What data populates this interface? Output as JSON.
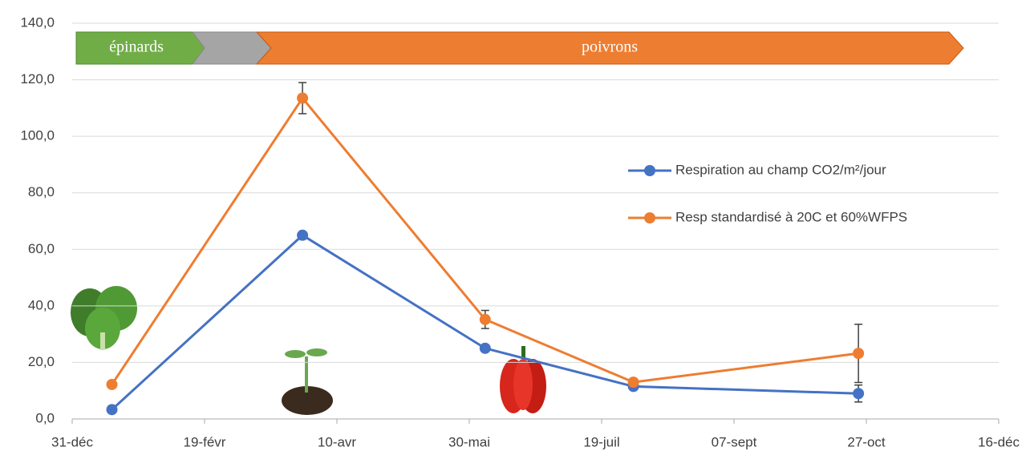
{
  "chart_data": {
    "type": "line",
    "phases": [
      "épinards",
      "poivrons"
    ],
    "x": [
      15,
      87,
      156,
      212,
      297
    ],
    "xlim": [
      0,
      350
    ],
    "xticks": [
      {
        "value": 0,
        "label": "31-déc"
      },
      {
        "value": 50,
        "label": "19-févr"
      },
      {
        "value": 100,
        "label": "10-avr"
      },
      {
        "value": 150,
        "label": "30-mai"
      },
      {
        "value": 200,
        "label": "19-juil"
      },
      {
        "value": 250,
        "label": "07-sept"
      },
      {
        "value": 300,
        "label": "27-oct"
      },
      {
        "value": 350,
        "label": "16-déc"
      }
    ],
    "ylim": [
      0,
      140
    ],
    "yticks": [
      {
        "value": 0,
        "label": "0,0"
      },
      {
        "value": 20,
        "label": "20,0"
      },
      {
        "value": 40,
        "label": "40,0"
      },
      {
        "value": 60,
        "label": "60,0"
      },
      {
        "value": 80,
        "label": "80,0"
      },
      {
        "value": 100,
        "label": "100,0"
      },
      {
        "value": 120,
        "label": "120,0"
      },
      {
        "value": 140,
        "label": "140,0"
      }
    ],
    "grid": true,
    "legend": "right",
    "series": [
      {
        "name": "Respiration au champ CO2/m²/jour",
        "color": "#4472c4",
        "values": [
          3.3,
          65,
          25,
          11.5,
          9
        ],
        "errors": [
          null,
          null,
          null,
          null,
          3
        ]
      },
      {
        "name": "Resp standardisé à 20C et 60%WFPS",
        "color": "#ed7d31",
        "values": [
          12.2,
          113.5,
          35.2,
          13,
          23.2
        ],
        "errors": [
          1,
          5.5,
          3.2,
          1,
          10.3
        ]
      }
    ]
  }
}
